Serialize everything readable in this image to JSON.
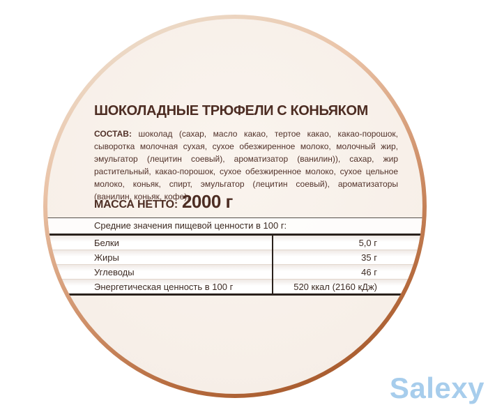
{
  "label": {
    "title": "ШОКОЛАДНЫЕ ТРЮФЕЛИ С КОНЬЯКОМ",
    "ingredients_label": "СОСТАВ:",
    "ingredients_text": "шоколад (сахар, масло какао, тертое какао, какао-порошок, сыворотка молочная сухая, сухое обезжиренное молоко, молочный жир, эмульгатор (лецитин соевый), ароматизатор (ванилин)), сахар, жир растительный, какао-порошок, сухое обезжиренное молоко, сухое цельное молоко, коньяк, спирт, эмульгатор (лецитин соевый), ароматизаторы (ванилин, коньяк, кофе).",
    "net_weight_label": "МАССА НЕТТО:",
    "net_weight_value": "2000 г",
    "nutrition": {
      "header": "Средние значения пищевой ценности в 100 г:",
      "rows": [
        {
          "name": "Белки",
          "value": "5,0 г"
        },
        {
          "name": "Жиры",
          "value": "35 г"
        },
        {
          "name": "Углеводы",
          "value": "46 г"
        },
        {
          "name": "Энергетическая ценность в 100 г",
          "value": "520 ккал (2160 кДж)"
        }
      ]
    }
  },
  "watermark": "Salexy",
  "colors": {
    "rim_light": "#eedcc9",
    "rim_dark": "#9c4e20",
    "label_face": "#f7efe8",
    "text_brown": "#4d2d23",
    "table_rule": "#2a211c",
    "watermark_blue": "#a7cdec"
  }
}
